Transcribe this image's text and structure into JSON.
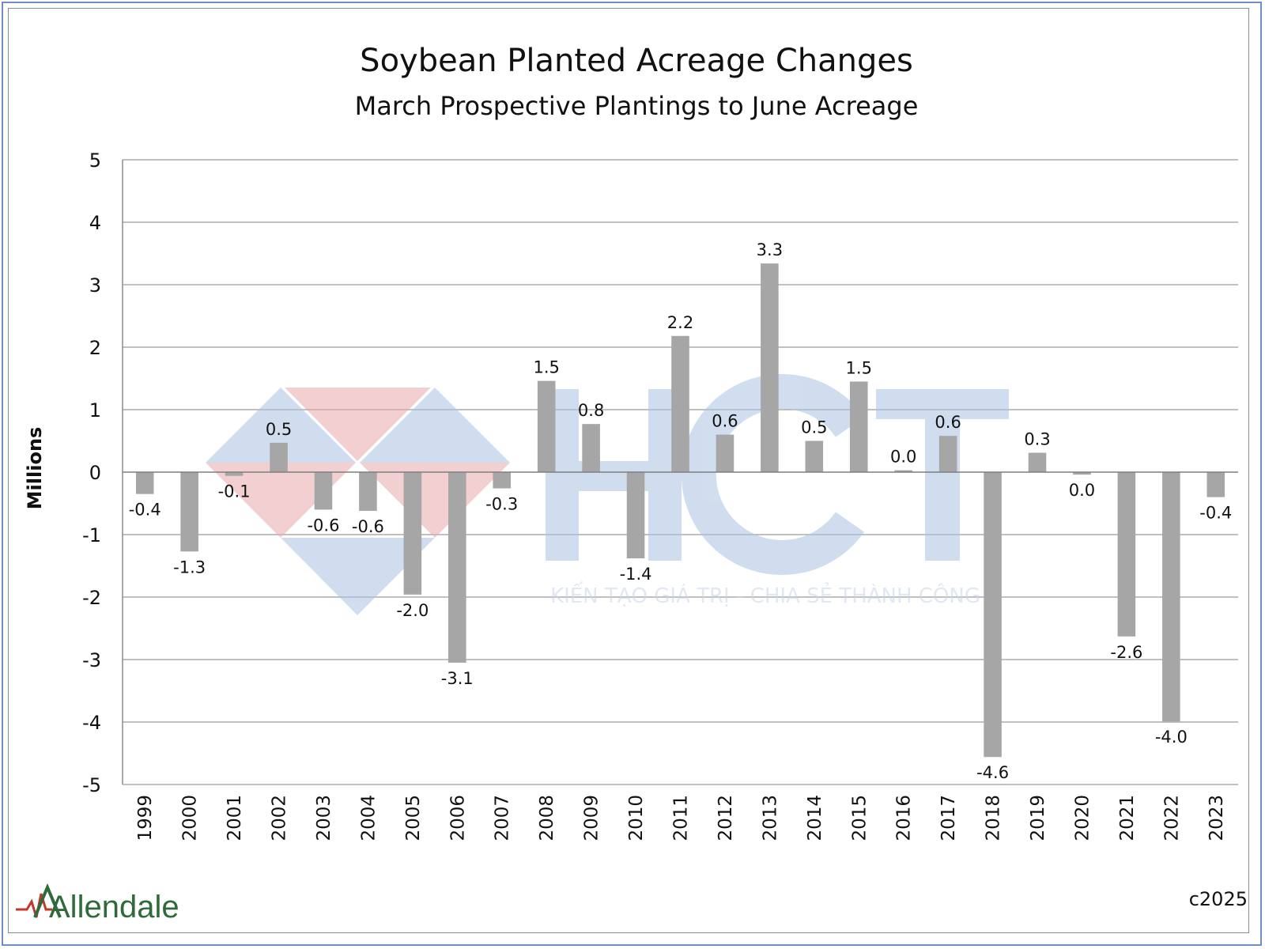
{
  "chart_data": {
    "type": "bar",
    "title": "Soybean Planted Acreage Changes",
    "subtitle": "March Prospective Plantings to June Acreage",
    "xlabel": "",
    "ylabel": "Millions",
    "ylim": [
      -5,
      5
    ],
    "yticks": [
      "5",
      "4",
      "3",
      "2",
      "1",
      "0",
      "-1",
      "-2",
      "-3",
      "-4",
      "-5"
    ],
    "grid": true,
    "categories": [
      "1999",
      "2000",
      "2001",
      "2002",
      "2003",
      "2004",
      "2005",
      "2006",
      "2007",
      "2008",
      "2009",
      "2010",
      "2011",
      "2012",
      "2013",
      "2014",
      "2015",
      "2016",
      "2017",
      "2018",
      "2019",
      "2020",
      "2021",
      "2022",
      "2023"
    ],
    "values": [
      -0.35,
      -1.27,
      -0.06,
      0.47,
      -0.6,
      -0.62,
      -1.96,
      -3.05,
      -0.26,
      1.46,
      0.77,
      -1.38,
      2.18,
      0.6,
      3.34,
      0.5,
      1.45,
      0.03,
      0.58,
      -4.56,
      0.31,
      -0.04,
      -2.63,
      -3.99,
      -0.4
    ],
    "data_labels": [
      "-0.4",
      "-1.3",
      "-0.1",
      "0.5",
      "-0.6",
      "-0.6",
      "-2.0",
      "-3.1",
      "-0.3",
      "1.5",
      "0.8",
      "-1.4",
      "2.2",
      "0.6",
      "3.3",
      "0.5",
      "1.5",
      "0.0",
      "0.6",
      "-4.6",
      "0.3",
      "0.0",
      "-2.6",
      "-4.0",
      "-0.4"
    ],
    "bar_color": "#a6a6a6"
  },
  "watermark": {
    "logo_text": "HCT",
    "tagline": "KIẾN TẠO GIÁ TRỊ - CHIA SẺ THÀNH CÔNG"
  },
  "branding": {
    "logo": "Allendale",
    "copyright": "c2025"
  }
}
